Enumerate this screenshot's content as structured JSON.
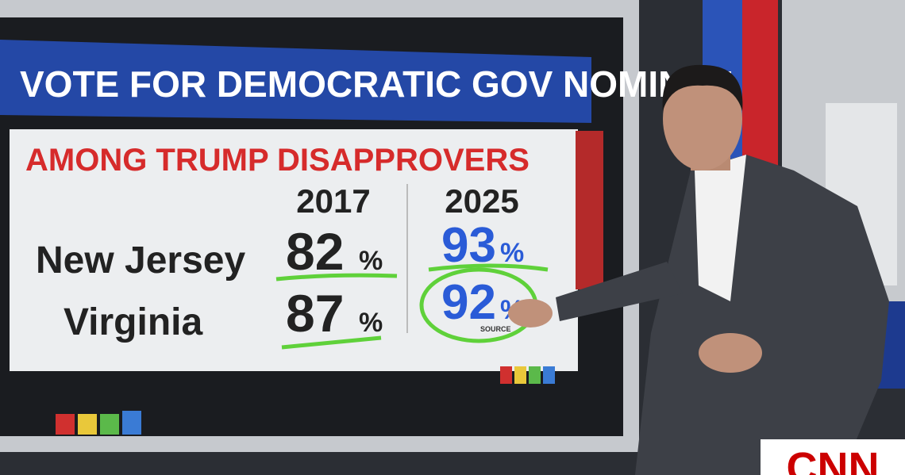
{
  "header": {
    "title": "VOTE FOR DEMOCRATIC GOV NOMINEE",
    "subtitle": "AMONG TRUMP DISAPPROVERS"
  },
  "table": {
    "columns": [
      "2017",
      "2025"
    ],
    "percent_sign": "%",
    "rows": [
      [
        "New Jersey",
        82,
        93
      ],
      [
        "Virginia",
        87,
        92
      ]
    ]
  },
  "source": "SOURCE",
  "logo": "CNN"
}
